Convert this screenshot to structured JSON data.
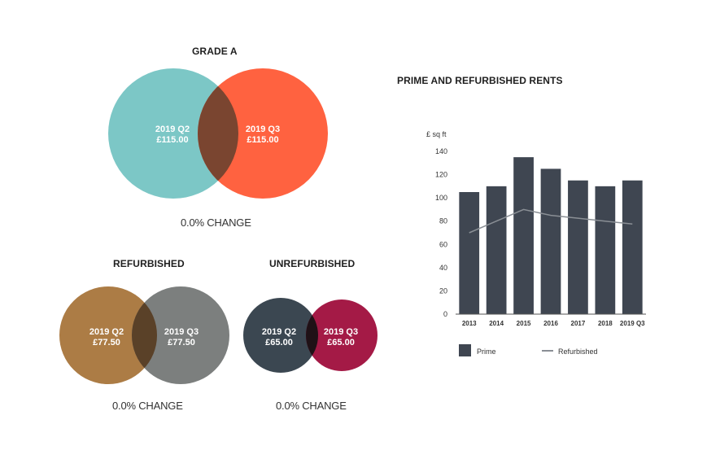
{
  "colors": {
    "grade_a_q2": "#7cc7c6",
    "grade_a_q3": "#ff6240",
    "grade_a_overlap": "#7a4530",
    "refurb_q2": "#ac7c45",
    "refurb_q3": "#7c7f7e",
    "refurb_overlap": "#5a4128",
    "unrefurb_q2": "#3b4751",
    "unrefurb_q3": "#a41a46",
    "unrefurb_overlap": "#1f1116",
    "prime_bar": "#3f4651",
    "refurbished_line": "#8a8f95"
  },
  "grade_a": {
    "title": "GRADE A",
    "left": {
      "period": "2019 Q2",
      "value": "£115.00"
    },
    "right": {
      "period": "2019 Q3",
      "value": "£115.00"
    },
    "change": "0.0% CHANGE"
  },
  "refurbished": {
    "title": "REFURBISHED",
    "left": {
      "period": "2019 Q2",
      "value": "£77.50"
    },
    "right": {
      "period": "2019 Q3",
      "value": "£77.50"
    },
    "change": "0.0% CHANGE"
  },
  "unrefurbished": {
    "title": "UNREFURBISHED",
    "left": {
      "period": "2019 Q2",
      "value": "£65.00"
    },
    "right": {
      "period": "2019 Q3",
      "value": "£65.00"
    },
    "change": "0.0% CHANGE"
  },
  "chart_data": {
    "type": "bar",
    "title": "PRIME AND REFURBISHED RENTS",
    "ylabel": "£ sq ft",
    "xlabel": "",
    "categories": [
      "2013",
      "2014",
      "2015",
      "2016",
      "2017",
      "2018",
      "2019 Q3"
    ],
    "yticks": [
      0,
      20,
      40,
      60,
      80,
      100,
      120,
      140
    ],
    "ylim": [
      0,
      140
    ],
    "series": [
      {
        "name": "Prime",
        "kind": "bar",
        "values": [
          105,
          110,
          135,
          125,
          115,
          110,
          115
        ]
      },
      {
        "name": "Refurbished",
        "kind": "line",
        "values": [
          70,
          80,
          90,
          85,
          82.5,
          80,
          77.5
        ]
      }
    ],
    "legend_position": "bottom-left"
  }
}
